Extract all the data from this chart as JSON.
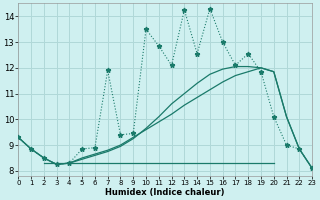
{
  "xlabel": "Humidex (Indice chaleur)",
  "background_color": "#cff0f0",
  "grid_color": "#b0d8d8",
  "line_color": "#1a7a6a",
  "xlim": [
    0,
    23
  ],
  "ylim": [
    7.8,
    14.5
  ],
  "xticks": [
    0,
    1,
    2,
    3,
    4,
    5,
    6,
    7,
    8,
    9,
    10,
    11,
    12,
    13,
    14,
    15,
    16,
    17,
    18,
    19,
    20,
    21,
    22,
    23
  ],
  "yticks": [
    8,
    9,
    10,
    11,
    12,
    13,
    14
  ],
  "jagged_x": [
    0,
    1,
    2,
    3,
    4,
    5,
    6,
    7,
    8,
    9,
    10,
    11,
    12,
    13,
    14,
    15,
    16,
    17,
    18,
    19,
    20,
    21,
    22,
    23
  ],
  "jagged_y": [
    9.3,
    8.85,
    8.5,
    8.25,
    8.3,
    8.85,
    8.9,
    11.9,
    9.4,
    9.45,
    13.5,
    12.85,
    12.1,
    14.25,
    12.55,
    14.3,
    13.0,
    12.1,
    12.55,
    11.85,
    10.1,
    9.0,
    8.85,
    8.1
  ],
  "trend1_x": [
    0,
    1,
    2,
    3,
    4,
    5,
    6,
    7,
    8,
    9,
    10,
    11,
    12,
    13,
    14,
    15,
    16,
    17,
    18,
    19,
    20,
    21,
    22,
    23
  ],
  "trend1_y": [
    9.3,
    8.85,
    8.5,
    8.25,
    8.3,
    8.5,
    8.65,
    8.8,
    9.0,
    9.3,
    9.6,
    9.9,
    10.2,
    10.55,
    10.85,
    11.15,
    11.45,
    11.7,
    11.85,
    12.0,
    11.85,
    10.1,
    8.85,
    8.1
  ],
  "trend2_x": [
    0,
    1,
    2,
    3,
    4,
    5,
    6,
    7,
    8,
    9,
    10,
    11,
    12,
    13,
    14,
    15,
    16,
    17,
    18,
    19,
    20,
    21,
    22,
    23
  ],
  "trend2_y": [
    9.3,
    8.85,
    8.5,
    8.25,
    8.3,
    8.45,
    8.6,
    8.75,
    8.95,
    9.25,
    9.65,
    10.1,
    10.6,
    11.0,
    11.4,
    11.75,
    11.95,
    12.05,
    12.05,
    12.0,
    11.85,
    10.1,
    8.85,
    8.1
  ],
  "trend3_x": [
    2,
    3,
    4,
    5,
    6,
    7,
    8,
    9,
    10,
    11,
    12,
    13,
    14,
    15,
    16,
    17,
    18,
    19,
    20
  ],
  "trend3_y": [
    8.3,
    8.3,
    8.3,
    8.3,
    8.3,
    8.3,
    8.3,
    8.3,
    8.3,
    8.3,
    8.3,
    8.3,
    8.3,
    8.3,
    8.3,
    8.3,
    8.3,
    8.3,
    8.3
  ]
}
